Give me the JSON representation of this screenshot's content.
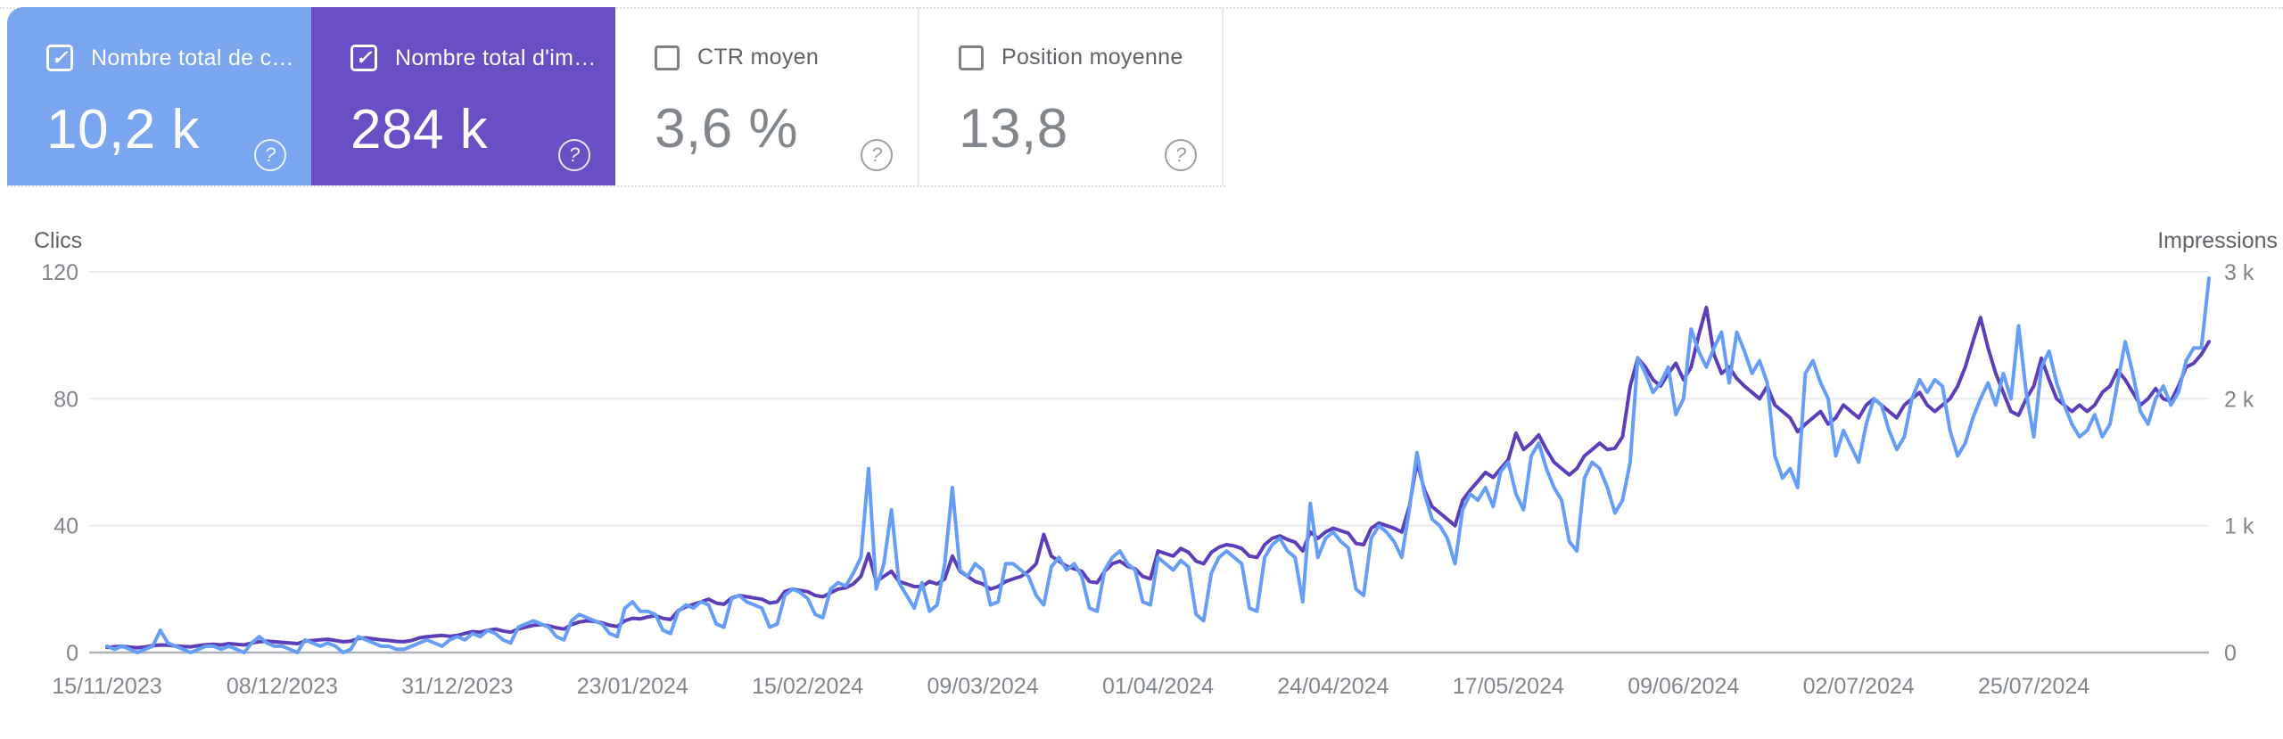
{
  "cards": [
    {
      "label": "Nombre total de c…",
      "value": "10,2 k",
      "checked": true,
      "bg": "#7AA6F0"
    },
    {
      "label": "Nombre total d'im…",
      "value": "284 k",
      "checked": true,
      "bg": "#6A4EC4"
    },
    {
      "label": "CTR moyen",
      "value": "3,6 %",
      "checked": false,
      "bg": ""
    },
    {
      "label": "Position moyenne",
      "value": "13,8",
      "checked": false,
      "bg": ""
    }
  ],
  "icons": {
    "check": "✓",
    "help": "?"
  },
  "colors": {
    "clicks_card": "#7AA6F0",
    "impressions_card": "#6A4EC4",
    "clicks_line": "#669DF6",
    "impressions_line": "#5C3EB8",
    "gridline": "#e9ebf3",
    "baseline": "#b0b4ba",
    "tick_text": "#80868b",
    "axis_title_text": "#5f6368"
  },
  "chart_data": {
    "type": "line",
    "title": "",
    "left_axis": {
      "title": "Clics",
      "ticks": [
        "120",
        "80",
        "40",
        "0"
      ],
      "range": [
        0,
        120
      ]
    },
    "right_axis": {
      "title": "Impressions",
      "ticks": [
        "3 k",
        "2 k",
        "1 k",
        "0"
      ],
      "range": [
        0,
        3000
      ]
    },
    "x_tick_labels": [
      "15/11/2023",
      "08/12/2023",
      "31/12/2023",
      "23/01/2024",
      "15/02/2024",
      "09/03/2024",
      "01/04/2024",
      "24/04/2024",
      "17/05/2024",
      "09/06/2024",
      "02/07/2024",
      "25/07/2024"
    ],
    "x_tick_interval_days": 23,
    "grid": true,
    "legend_position": "none",
    "series": [
      {
        "name": "clicks",
        "axis": "left",
        "color": "#669DF6",
        "values": [
          2,
          1,
          2,
          1,
          0,
          1,
          2,
          7,
          3,
          2,
          1,
          0,
          1,
          2,
          2,
          1,
          2,
          1,
          0,
          3,
          5,
          3,
          2,
          2,
          1,
          0,
          4,
          3,
          2,
          3,
          2,
          0,
          1,
          5,
          4,
          3,
          2,
          2,
          1,
          1,
          2,
          3,
          4,
          3,
          2,
          4,
          5,
          4,
          6,
          5,
          7,
          6,
          4,
          3,
          8,
          9,
          10,
          9,
          8,
          5,
          4,
          10,
          12,
          11,
          10,
          9,
          6,
          5,
          14,
          16,
          13,
          13,
          12,
          7,
          6,
          13,
          15,
          14,
          16,
          15,
          9,
          8,
          17,
          18,
          16,
          15,
          14,
          8,
          9,
          18,
          20,
          19,
          17,
          12,
          11,
          20,
          22,
          21,
          25,
          30,
          58,
          20,
          28,
          45,
          22,
          18,
          14,
          22,
          13,
          15,
          28,
          52,
          26,
          24,
          28,
          26,
          15,
          16,
          28,
          28,
          26,
          24,
          18,
          15,
          27,
          30,
          26,
          28,
          24,
          14,
          13,
          26,
          30,
          32,
          28,
          26,
          16,
          15,
          30,
          28,
          26,
          29,
          27,
          12,
          10,
          25,
          30,
          32,
          30,
          28,
          14,
          13,
          30,
          34,
          36,
          32,
          30,
          16,
          47,
          30,
          36,
          38,
          35,
          33,
          20,
          18,
          36,
          40,
          38,
          35,
          30,
          45,
          63,
          50,
          42,
          40,
          36,
          28,
          45,
          50,
          48,
          52,
          46,
          57,
          60,
          50,
          45,
          62,
          66,
          58,
          52,
          48,
          35,
          32,
          55,
          60,
          58,
          52,
          44,
          48,
          60,
          93,
          88,
          82,
          85,
          90,
          75,
          80,
          102,
          95,
          90,
          96,
          101,
          85,
          101,
          95,
          88,
          92,
          85,
          62,
          55,
          58,
          52,
          88,
          92,
          85,
          80,
          62,
          70,
          65,
          60,
          72,
          80,
          78,
          70,
          64,
          68,
          80,
          86,
          82,
          86,
          84,
          70,
          62,
          66,
          74,
          80,
          85,
          78,
          88,
          80,
          103,
          82,
          68,
          90,
          95,
          85,
          78,
          72,
          68,
          70,
          75,
          68,
          72,
          85,
          98,
          88,
          76,
          72,
          80,
          84,
          78,
          82,
          92,
          96,
          96,
          118
        ]
      },
      {
        "name": "impressions",
        "axis": "right",
        "color": "#5C3EB8",
        "values": [
          40,
          45,
          50,
          42,
          38,
          44,
          55,
          60,
          58,
          52,
          48,
          45,
          55,
          62,
          65,
          60,
          70,
          65,
          60,
          75,
          85,
          90,
          85,
          80,
          75,
          70,
          90,
          95,
          100,
          105,
          95,
          85,
          90,
          110,
          115,
          108,
          100,
          95,
          88,
          85,
          95,
          115,
          125,
          130,
          135,
          128,
          135,
          150,
          165,
          160,
          175,
          185,
          170,
          160,
          185,
          200,
          215,
          220,
          210,
          195,
          185,
          220,
          240,
          250,
          245,
          235,
          215,
          205,
          250,
          270,
          265,
          280,
          290,
          270,
          260,
          330,
          360,
          380,
          400,
          420,
          390,
          380,
          430,
          450,
          440,
          430,
          420,
          390,
          400,
          480,
          500,
          490,
          480,
          450,
          440,
          470,
          500,
          510,
          540,
          600,
          780,
          560,
          600,
          640,
          560,
          540,
          520,
          520,
          560,
          540,
          580,
          760,
          640,
          600,
          560,
          540,
          500,
          520,
          560,
          580,
          600,
          640,
          700,
          930,
          760,
          720,
          680,
          660,
          640,
          560,
          550,
          640,
          700,
          720,
          680,
          660,
          600,
          580,
          800,
          780,
          760,
          820,
          790,
          720,
          700,
          790,
          830,
          850,
          840,
          820,
          760,
          750,
          850,
          900,
          920,
          890,
          870,
          800,
          950,
          900,
          950,
          980,
          960,
          940,
          860,
          850,
          980,
          1020,
          1000,
          980,
          950,
          1150,
          1500,
          1280,
          1150,
          1100,
          1050,
          1000,
          1200,
          1280,
          1350,
          1420,
          1380,
          1450,
          1520,
          1729,
          1600,
          1650,
          1715,
          1600,
          1500,
          1450,
          1400,
          1450,
          1550,
          1600,
          1650,
          1600,
          1610,
          1700,
          2100,
          2320,
          2250,
          2150,
          2100,
          2200,
          2280,
          2150,
          2250,
          2500,
          2720,
          2350,
          2200,
          2250,
          2160,
          2100,
          2050,
          2000,
          2100,
          1950,
          1900,
          1850,
          1740,
          1800,
          1850,
          1900,
          1800,
          1850,
          1950,
          1900,
          1850,
          1950,
          2000,
          1950,
          1900,
          1850,
          1950,
          2000,
          2050,
          1950,
          1900,
          1950,
          2000,
          2100,
          2250,
          2450,
          2640,
          2400,
          2200,
          2050,
          1900,
          1870,
          2000,
          2100,
          2320,
          2150,
          2000,
          1950,
          1900,
          1950,
          1900,
          1950,
          2050,
          2100,
          2224,
          2150,
          2050,
          1950,
          2000,
          2080,
          2000,
          1980,
          2100,
          2250,
          2280,
          2350,
          2450
        ]
      }
    ]
  }
}
